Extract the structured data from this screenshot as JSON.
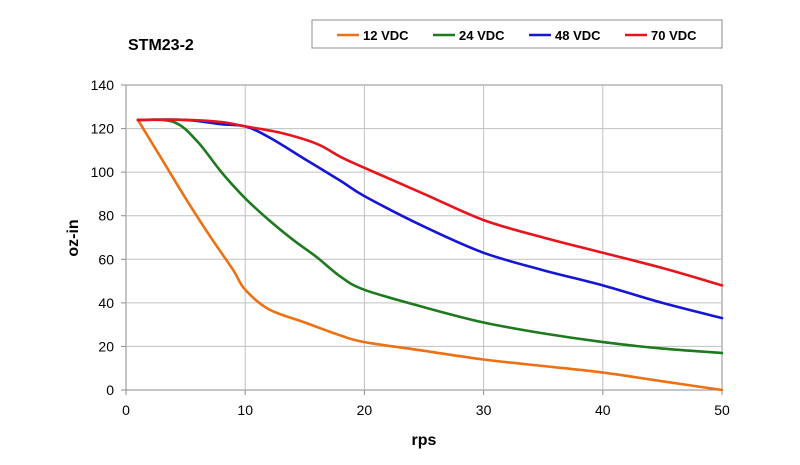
{
  "chart_data": {
    "type": "line",
    "title": "STM23-2",
    "xlabel": "rps",
    "ylabel": "oz-in",
    "xlim": [
      0,
      50
    ],
    "ylim": [
      0,
      140
    ],
    "xticks": [
      0,
      10,
      20,
      30,
      40,
      50
    ],
    "yticks": [
      0,
      20,
      40,
      60,
      80,
      100,
      120,
      140
    ],
    "grid": true,
    "legend": "top-right",
    "series": [
      {
        "name": "12 VDC",
        "color": "#ed7014",
        "x": [
          1,
          3,
          5,
          7,
          9,
          10,
          12,
          15,
          18,
          20,
          25,
          30,
          35,
          40,
          45,
          50
        ],
        "y": [
          124,
          106,
          88,
          71,
          55,
          46,
          37,
          31,
          25,
          22,
          18,
          14,
          11,
          8,
          4,
          0
        ]
      },
      {
        "name": "24 VDC",
        "color": "#1e7a1e",
        "x": [
          1,
          4,
          6,
          8,
          10,
          12,
          14,
          16,
          18,
          20,
          25,
          30,
          35,
          40,
          45,
          50
        ],
        "y": [
          124,
          123,
          114,
          100,
          88,
          78,
          69,
          61,
          52,
          46,
          38,
          31,
          26,
          22,
          19,
          17
        ]
      },
      {
        "name": "48 VDC",
        "color": "#1515d8",
        "x": [
          1,
          5,
          8,
          10,
          12,
          15,
          18,
          20,
          25,
          30,
          35,
          40,
          45,
          50
        ],
        "y": [
          124,
          124,
          122,
          121,
          116,
          106,
          96,
          89,
          75,
          63,
          55,
          48,
          40,
          33
        ]
      },
      {
        "name": "70 VDC",
        "color": "#e8141c",
        "x": [
          1,
          5,
          8,
          10,
          13,
          16,
          18,
          20,
          25,
          30,
          35,
          40,
          45,
          50
        ],
        "y": [
          124,
          124,
          123,
          121,
          118,
          113,
          107,
          102,
          90,
          78,
          70,
          63,
          56,
          48
        ]
      }
    ]
  }
}
